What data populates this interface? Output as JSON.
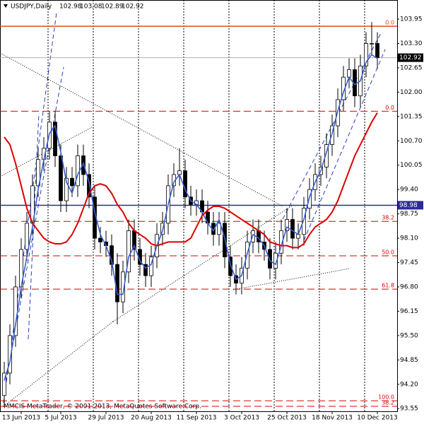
{
  "chart_data": {
    "type": "candlestick",
    "header": {
      "symbol": "USDJPY,Daily",
      "ohlc": [
        102.98,
        103.08,
        102.89,
        102.92
      ]
    },
    "footer": "MMCIS MetaTrader, © 2001-2013, MetaQuotes Software Corp.",
    "categories": [
      null,
      null,
      null,
      "13 Jun 2013",
      null,
      null,
      null,
      null,
      null,
      null,
      "5 Jul 2013",
      null,
      null,
      null,
      null,
      null,
      null,
      null,
      "29 Jul 2013",
      null,
      null,
      null,
      null,
      null,
      null,
      null,
      "20 Aug 2013",
      null,
      null,
      null,
      null,
      null,
      null,
      null,
      "11 Sep 2013",
      null,
      null,
      null,
      null,
      null,
      null,
      null,
      "3 Oct 2013",
      null,
      null,
      null,
      null,
      null,
      null,
      null,
      "25 Oct 2013",
      null,
      null,
      null,
      null,
      null,
      null,
      null,
      "18 Nov 2013",
      null,
      null,
      null,
      null,
      null,
      null,
      null,
      "10 Dec 2013"
    ],
    "candles": {
      "open": [
        93.9,
        94.5,
        95.5,
        96.8,
        97.8,
        98.5,
        99.5,
        100.2,
        100.5,
        101.2,
        100.3,
        99.1,
        99.7,
        99.5,
        100.3,
        99.8,
        99.2,
        98.1,
        98.0,
        97.9,
        97.4,
        96.4,
        97.2,
        98.3,
        97.8,
        97.4,
        97.1,
        97.6,
        98.2,
        98.5,
        99.5,
        99.8,
        99.9,
        99.2,
        99.0,
        99.1,
        98.8,
        98.5,
        98.2,
        98.5,
        97.6,
        97.1,
        96.9,
        97.3,
        98.0,
        98.3,
        98.0,
        97.8,
        97.3,
        97.7,
        98.3,
        98.6,
        98.1,
        98.2,
        98.9,
        99.4,
        99.8,
        100.0,
        100.6,
        101.1,
        101.8,
        102.4,
        102.6,
        101.9,
        102.7,
        103.3,
        103.3
      ],
      "high": [
        94.8,
        95.8,
        97.1,
        98.1,
        98.8,
        99.8,
        100.5,
        100.8,
        101.5,
        101.5,
        100.6,
        100.0,
        100.0,
        100.6,
        100.6,
        100.1,
        99.5,
        98.4,
        98.3,
        98.2,
        97.7,
        97.5,
        98.6,
        98.6,
        98.1,
        97.7,
        97.9,
        98.5,
        98.8,
        99.8,
        100.1,
        100.5,
        100.2,
        99.5,
        99.4,
        99.4,
        99.1,
        98.8,
        98.8,
        98.8,
        97.9,
        97.4,
        97.6,
        98.3,
        98.6,
        98.6,
        98.3,
        98.1,
        98.0,
        98.6,
        98.9,
        98.9,
        98.5,
        99.2,
        99.7,
        100.1,
        100.3,
        100.9,
        101.4,
        102.1,
        102.7,
        102.9,
        102.9,
        103.0,
        103.6,
        103.87,
        103.6
      ],
      "low": [
        93.6,
        94.2,
        95.2,
        96.5,
        97.5,
        98.2,
        99.2,
        99.9,
        100.2,
        100.0,
        98.8,
        98.8,
        99.2,
        99.2,
        99.5,
        98.9,
        97.8,
        97.7,
        97.6,
        97.1,
        95.8,
        96.1,
        96.9,
        97.5,
        97.1,
        96.8,
        96.8,
        97.3,
        97.9,
        98.2,
        99.2,
        99.5,
        98.9,
        98.7,
        98.7,
        98.5,
        98.2,
        97.9,
        97.9,
        97.3,
        96.8,
        96.6,
        96.6,
        97.0,
        97.7,
        97.7,
        97.5,
        97.0,
        97.0,
        97.4,
        98.0,
        97.8,
        97.8,
        97.9,
        98.6,
        99.1,
        99.5,
        99.7,
        100.3,
        100.8,
        101.5,
        102.1,
        101.6,
        101.6,
        102.4,
        103.0,
        102.62
      ],
      "close": [
        94.5,
        95.5,
        96.8,
        97.8,
        98.5,
        99.5,
        100.2,
        100.5,
        101.2,
        100.3,
        99.1,
        99.7,
        99.5,
        100.3,
        99.8,
        99.2,
        98.1,
        98.0,
        97.9,
        97.4,
        96.4,
        97.2,
        98.3,
        97.8,
        97.4,
        97.1,
        97.6,
        98.2,
        98.5,
        99.5,
        99.8,
        99.9,
        99.2,
        99.0,
        99.1,
        98.8,
        98.5,
        98.2,
        98.5,
        97.6,
        97.1,
        96.9,
        97.3,
        98.0,
        98.3,
        98.0,
        97.8,
        97.3,
        97.7,
        98.3,
        98.6,
        98.1,
        98.2,
        98.9,
        99.4,
        99.8,
        100.0,
        100.6,
        101.1,
        101.8,
        102.4,
        102.6,
        101.9,
        102.7,
        103.3,
        103.3,
        102.92
      ]
    },
    "series": [
      {
        "color": "#3a5fcd",
        "values": [
          94.3,
          94.8,
          95.8,
          96.8,
          97.6,
          98.4,
          99.4,
          100.2,
          100.9,
          101.1,
          100.4,
          99.6,
          99.3,
          99.8,
          100.1,
          99.6,
          98.8,
          98.2,
          97.9,
          97.5,
          96.6,
          96.6,
          97.6,
          97.9,
          97.5,
          97.3,
          97.4,
          97.9,
          98.3,
          99.0,
          99.6,
          99.8,
          99.4,
          99.1,
          99.0,
          98.8,
          98.5,
          98.3,
          98.6,
          98.1,
          97.4,
          97.0,
          97.1,
          97.7,
          98.2,
          98.1,
          97.9,
          97.5,
          97.4,
          97.9,
          98.4,
          98.3,
          98.2,
          98.6,
          99.2,
          99.6,
          99.9,
          100.4,
          100.9,
          101.5,
          102.0,
          102.4,
          102.2,
          102.3,
          102.8,
          103.0,
          102.9
        ]
      },
      {
        "color": "#dd0000",
        "values": [
          100.8,
          100.6,
          100.1,
          99.5,
          98.9,
          98.5,
          98.3,
          98.1,
          98.0,
          97.95,
          97.95,
          98.0,
          98.2,
          98.5,
          98.9,
          99.3,
          99.5,
          99.55,
          99.5,
          99.3,
          99.0,
          98.8,
          98.5,
          98.3,
          98.2,
          98.1,
          97.95,
          97.9,
          97.95,
          98.0,
          98.0,
          98.0,
          98.0,
          98.1,
          98.4,
          98.7,
          98.85,
          98.95,
          98.95,
          98.9,
          98.8,
          98.7,
          98.6,
          98.5,
          98.4,
          98.3,
          98.2,
          98.0,
          97.95,
          97.9,
          97.9,
          97.85,
          97.85,
          97.95,
          98.2,
          98.4,
          98.5,
          98.6,
          98.8,
          99.1,
          99.5,
          99.9,
          100.3,
          100.6,
          100.9,
          101.2,
          101.45
        ]
      }
    ],
    "levels": [
      {
        "value": 103.76,
        "label": "0.0",
        "color": "#e8481c",
        "dashed": false
      },
      {
        "value": 101.49,
        "label": "0.0",
        "color": "#dd0000",
        "dashed": true
      },
      {
        "value": 98.55,
        "label": "38.2",
        "color": "#dd0000",
        "dashed": true
      },
      {
        "value": 97.63,
        "label": "50.0",
        "color": "#dd0000",
        "dashed": true
      },
      {
        "value": 96.74,
        "label": "61.8",
        "color": "#dd0000",
        "dashed": true
      },
      {
        "value": 93.76,
        "label": "100.0",
        "color": "#dd0000",
        "dashed": true
      },
      {
        "value": 93.61,
        "label": "38.2",
        "color": "#dd0000",
        "dashed": true
      }
    ],
    "price_markers": [
      {
        "value": 102.92,
        "color": "#000000",
        "line": "#b0b0b0"
      },
      {
        "value": 98.98,
        "color": "#2a2a9a",
        "line": "#2a2a9a"
      }
    ],
    "ylim": [
      93.46,
      104.46
    ],
    "yticks": [
      {
        "value": 103.95,
        "label": "103.95"
      },
      {
        "value": 103.3,
        "label": "103.30"
      },
      102.65,
      {
        "value": 102.0,
        "label": "102.00"
      },
      101.35,
      {
        "value": 100.7,
        "label": "100.70"
      },
      100.05,
      {
        "value": 99.4,
        "label": "99.40"
      },
      98.75,
      {
        "value": 98.1,
        "label": "98.10"
      },
      97.45,
      {
        "value": 96.8,
        "label": "96.80"
      },
      96.15,
      {
        "value": 95.5,
        "label": "95.50"
      },
      94.85,
      {
        "value": 94.2,
        "label": "94.20"
      },
      93.55
    ],
    "grid": true
  }
}
